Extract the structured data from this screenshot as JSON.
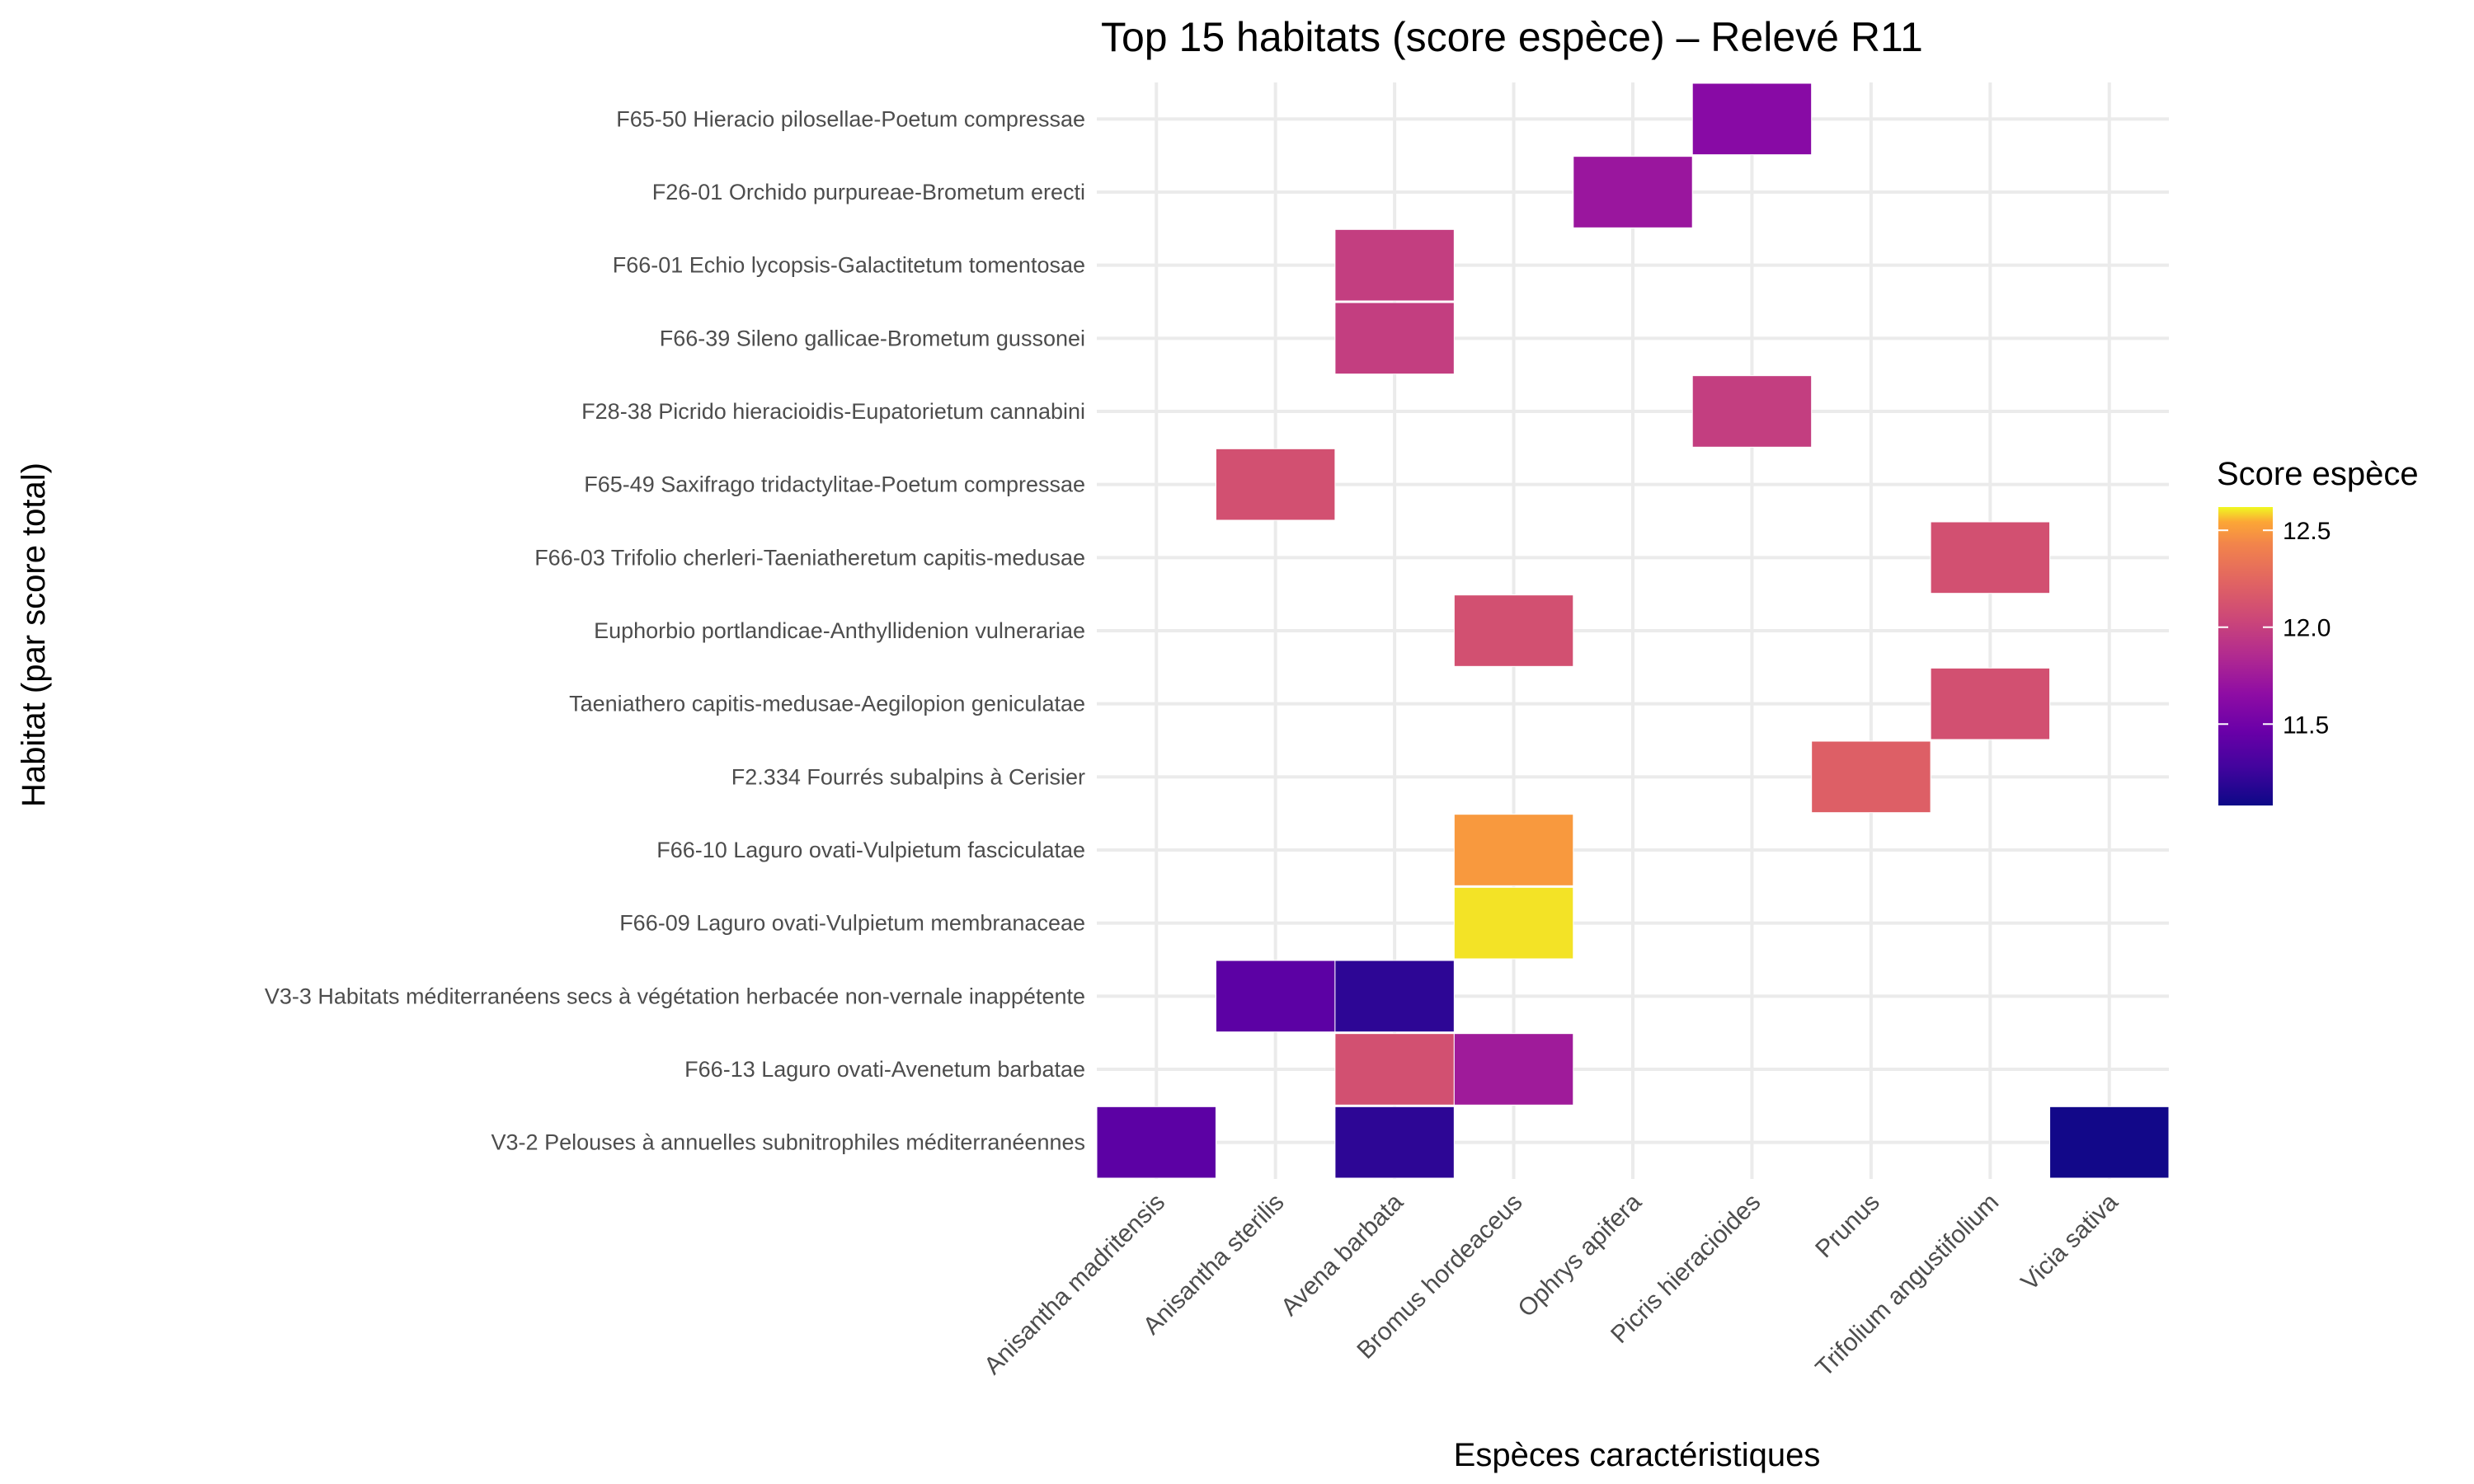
{
  "chart_data": {
    "type": "heatmap",
    "title": "Top 15 habitats (score espèce) – Relevé R11",
    "xlabel": "Espèces caractéristiques",
    "ylabel": "Habitat (par score total)",
    "x_categories": [
      "Anisantha madritensis",
      "Anisantha sterilis",
      "Avena barbata",
      "Bromus hordeaceus",
      "Ophrys apifera",
      "Picris hieracioides",
      "Prunus",
      "Trifolium angustifolium",
      "Vicia sativa"
    ],
    "y_categories": [
      "F65-50 Hieracio pilosellae-Poetum compressae",
      "F26-01 Orchido purpureae-Brometum erecti",
      "F66-01 Echio lycopsis-Galactitetum tomentosae",
      "F66-39 Sileno gallicae-Brometum gussonei",
      "F28-38 Picrido hieracioidis-Eupatorietum cannabini",
      "F65-49 Saxifrago tridactylitae-Poetum compressae",
      "F66-03 Trifolio cherleri-Taeniatheretum capitis-medusae",
      "Euphorbio portlandicae-Anthyllidenion vulnerariae",
      "Taeniathero capitis-medusae-Aegilopion geniculatae",
      "F2.334 Fourrés subalpins à Cerisier",
      "F66-10 Laguro ovati-Vulpietum fasciculatae",
      "F66-09 Laguro ovati-Vulpietum membranaceae",
      "V3-3 Habitats méditerranéens secs à végétation herbacée non-vernale inappétente",
      "F66-13 Laguro ovati-Avenetum barbatae",
      "V3-2 Pelouses à annuelles subnitrophiles méditerranéennes"
    ],
    "cells": [
      {
        "x": "Picris hieracioides",
        "y": "F65-50 Hieracio pilosellae-Poetum compressae",
        "value": 11.62
      },
      {
        "x": "Ophrys apifera",
        "y": "F26-01 Orchido purpureae-Brometum erecti",
        "value": 11.72
      },
      {
        "x": "Avena barbata",
        "y": "F66-01 Echio lycopsis-Galactitetum tomentosae",
        "value": 11.98
      },
      {
        "x": "Avena barbata",
        "y": "F66-39 Sileno gallicae-Brometum gussonei",
        "value": 11.98
      },
      {
        "x": "Picris hieracioides",
        "y": "F28-38 Picrido hieracioidis-Eupatorietum cannabini",
        "value": 11.98
      },
      {
        "x": "Anisantha sterilis",
        "y": "F65-49 Saxifrago tridactylitae-Poetum compressae",
        "value": 12.1
      },
      {
        "x": "Trifolium angustifolium",
        "y": "F66-03 Trifolio cherleri-Taeniatheretum capitis-medusae",
        "value": 12.1
      },
      {
        "x": "Bromus hordeaceus",
        "y": "Euphorbio portlandicae-Anthyllidenion vulnerariae",
        "value": 12.1
      },
      {
        "x": "Trifolium angustifolium",
        "y": "Taeniathero capitis-medusae-Aegilopion geniculatae",
        "value": 12.1
      },
      {
        "x": "Prunus",
        "y": "F2.334 Fourrés subalpins à Cerisier",
        "value": 12.2
      },
      {
        "x": "Bromus hordeaceus",
        "y": "F66-10 Laguro ovati-Vulpietum fasciculatae",
        "value": 12.5
      },
      {
        "x": "Bromus hordeaceus",
        "y": "F66-09 Laguro ovati-Vulpietum membranaceae",
        "value": 12.6
      },
      {
        "x": "Anisantha sterilis",
        "y": "V3-3 Habitats méditerranéens secs à végétation herbacée non-vernale inappétente",
        "value": 11.4
      },
      {
        "x": "Avena barbata",
        "y": "V3-3 Habitats méditerranéens secs à végétation herbacée non-vernale inappétente",
        "value": 11.2
      },
      {
        "x": "Avena barbata",
        "y": "F66-13 Laguro ovati-Avenetum barbatae",
        "value": 12.1
      },
      {
        "x": "Bromus hordeaceus",
        "y": "F66-13 Laguro ovati-Avenetum barbatae",
        "value": 11.75
      },
      {
        "x": "Anisantha madritensis",
        "y": "V3-2 Pelouses à annuelles subnitrophiles méditerranéennes",
        "value": 11.4
      },
      {
        "x": "Avena barbata",
        "y": "V3-2 Pelouses à annuelles subnitrophiles méditerranéennes",
        "value": 11.2
      },
      {
        "x": "Vicia sativa",
        "y": "V3-2 Pelouses à annuelles subnitrophiles méditerranéennes",
        "value": 11.1
      }
    ],
    "legend": {
      "title": "Score espèce",
      "min": 11.08,
      "max": 12.62,
      "ticks": [
        11.5,
        12.0,
        12.5
      ],
      "tick_labels": [
        "11.5",
        "12.0",
        "12.5"
      ],
      "palette": "plasma",
      "placement": "right"
    },
    "grid": true
  }
}
